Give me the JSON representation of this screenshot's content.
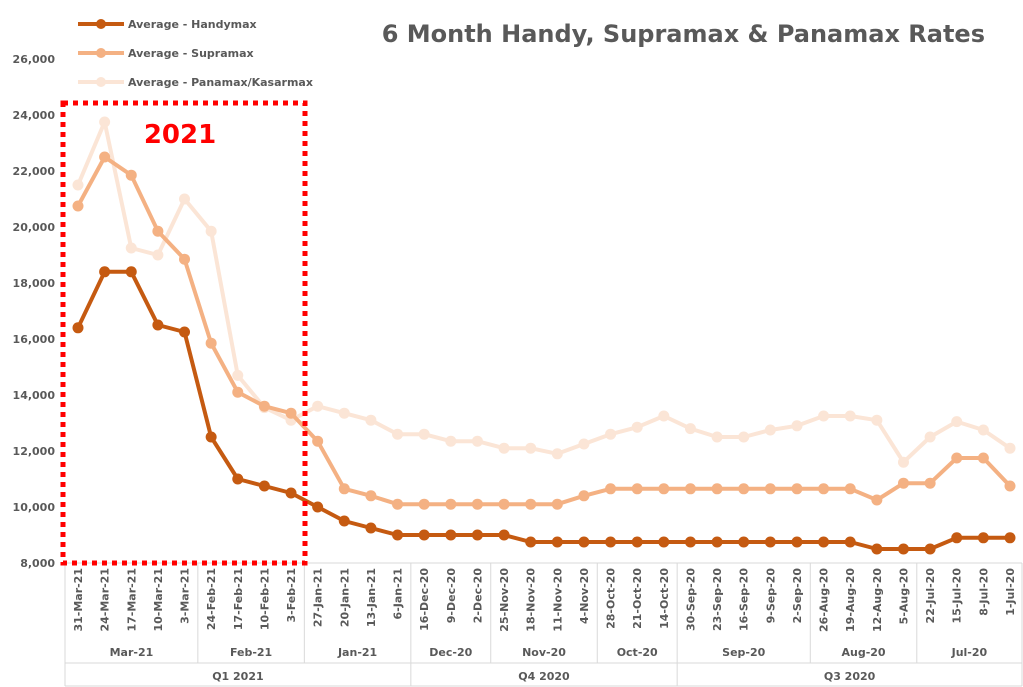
{
  "chart_data": {
    "type": "line",
    "title": "6 Month Handy, Supramax & Panamax Rates",
    "annotation": "2021",
    "xlabel": "",
    "ylabel": "",
    "ylim": [
      8000,
      26000
    ],
    "yticks": [
      8000,
      10000,
      12000,
      14000,
      16000,
      18000,
      20000,
      22000,
      24000,
      26000
    ],
    "ytick_labels": [
      "8,000",
      "10,000",
      "12,000",
      "14,000",
      "16,000",
      "18,000",
      "20,000",
      "22,000",
      "24,000",
      "26,000"
    ],
    "grid": false,
    "legend": "top-left",
    "categories": [
      "31-Mar-21",
      "24-Mar-21",
      "17-Mar-21",
      "10-Mar-21",
      "3-Mar-21",
      "24-Feb-21",
      "17-Feb-21",
      "10-Feb-21",
      "3-Feb-21",
      "27-Jan-21",
      "20-Jan-21",
      "13-Jan-21",
      "6-Jan-21",
      "16-Dec-20",
      "9-Dec-20",
      "2-Dec-20",
      "25-Nov-20",
      "18-Nov-20",
      "11-Nov-20",
      "4-Nov-20",
      "28-Oct-20",
      "21-Oct-20",
      "14-Oct-20",
      "30-Sep-20",
      "23-Sep-20",
      "16-Sep-20",
      "9-Sep-20",
      "2-Sep-20",
      "26-Aug-20",
      "19-Aug-20",
      "12-Aug-20",
      "5-Aug-20",
      "22-Jul-20",
      "15-Jul-20",
      "8-Jul-20",
      "1-Jul-20"
    ],
    "month_groups": [
      {
        "label": "Mar-21",
        "count": 5
      },
      {
        "label": "Feb-21",
        "count": 4
      },
      {
        "label": "Jan-21",
        "count": 4
      },
      {
        "label": "Dec-20",
        "count": 3
      },
      {
        "label": "Nov-20",
        "count": 4
      },
      {
        "label": "Oct-20",
        "count": 3
      },
      {
        "label": "Sep-20",
        "count": 5
      },
      {
        "label": "Aug-20",
        "count": 4
      },
      {
        "label": "Jul-20",
        "count": 4
      }
    ],
    "quarter_groups": [
      {
        "label": "Q1 2021",
        "count": 13
      },
      {
        "label": "Q4 2020",
        "count": 10
      },
      {
        "label": "Q3 2020",
        "count": 13
      }
    ],
    "series": [
      {
        "name": "Average - Handymax",
        "color": "#C55A11",
        "values": [
          16400,
          18400,
          18400,
          16500,
          16250,
          12500,
          11000,
          10750,
          10500,
          10000,
          9500,
          9250,
          9000,
          9000,
          9000,
          9000,
          9000,
          8750,
          8750,
          8750,
          8750,
          8750,
          8750,
          8750,
          8750,
          8750,
          8750,
          8750,
          8750,
          8750,
          8500,
          8500,
          8500,
          8900,
          8900,
          8900
        ]
      },
      {
        "name": "Average - Supramax",
        "color": "#F4B183",
        "values": [
          20750,
          22500,
          21850,
          19850,
          18850,
          15850,
          14100,
          13600,
          13350,
          12350,
          10650,
          10400,
          10100,
          10100,
          10100,
          10100,
          10100,
          10100,
          10100,
          10400,
          10650,
          10650,
          10650,
          10650,
          10650,
          10650,
          10650,
          10650,
          10650,
          10650,
          10250,
          10850,
          10850,
          11750,
          11750,
          10750
        ]
      },
      {
        "name": "Average - Panamax/Kasarmax",
        "color": "#FBE5D6",
        "values": [
          21500,
          23750,
          19250,
          19000,
          21000,
          19850,
          14700,
          13550,
          13100,
          13600,
          13350,
          13100,
          12600,
          12600,
          12350,
          12350,
          12100,
          12100,
          11900,
          12250,
          12600,
          12850,
          13250,
          12800,
          12500,
          12500,
          12750,
          12900,
          13250,
          13250,
          13100,
          11600,
          12500,
          13050,
          12750,
          12100
        ]
      }
    ]
  }
}
